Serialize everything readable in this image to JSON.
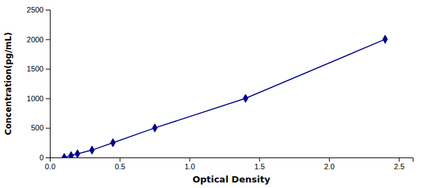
{
  "chart_data": {
    "type": "line",
    "xlabel": "Optical Density",
    "ylabel": "Concentration(pg/mL)",
    "x": [
      0.103,
      0.152,
      0.198,
      0.302,
      0.452,
      0.752,
      1.402,
      2.402
    ],
    "values": [
      0,
      31.25,
      62.5,
      125,
      250,
      500,
      1000,
      2000
    ],
    "color": "#00008B",
    "marker": "diamond",
    "xlim": [
      0.0,
      2.6
    ],
    "ylim": [
      0,
      2500
    ],
    "xticks": [
      {
        "value": 0,
        "label": "0.0"
      },
      0.5,
      {
        "value": 1.0,
        "label": "1.0"
      },
      1.5,
      {
        "value": 2.0,
        "label": "2.0"
      },
      2.5
    ],
    "yticks": [
      0,
      500,
      1000,
      1500,
      2000,
      2500
    ],
    "grid": false
  }
}
